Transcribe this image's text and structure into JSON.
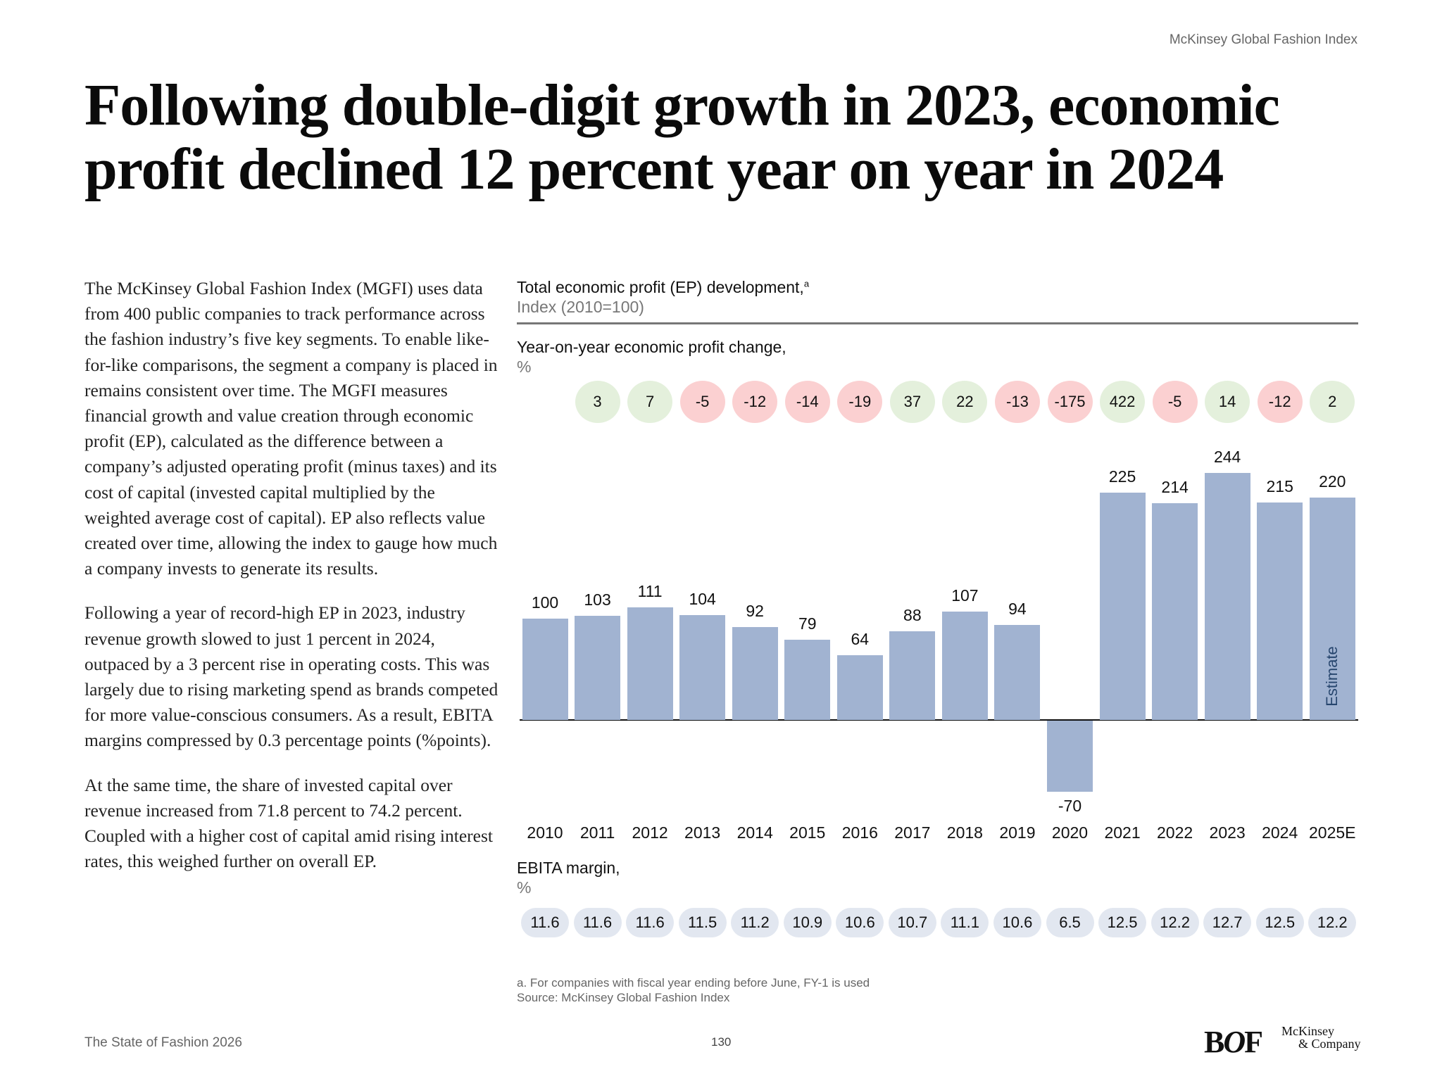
{
  "header": {
    "source_label": "McKinsey Global Fashion Index"
  },
  "title": "Following double-digit growth in 2023, economic profit declined 12 percent year on year in 2024",
  "body": [
    "The McKinsey Global Fashion Index (MGFI) uses data from 400 public companies to track performance across the fashion industry’s five key segments. To enable like-for-like comparisons, the segment a company is placed in remains consistent over time. The MGFI measures financial growth and value creation through economic profit (EP), calculated as the difference between a company’s adjusted operating profit (minus taxes) and its cost of capital (invested capital multiplied by the weighted average cost of capital). EP also reflects value created over time, allowing the index to gauge how much a company invests to generate its results.",
    "Following a year of record-high EP in 2023, industry revenue growth slowed to just 1 percent in 2024, outpaced by a 3 percent rise in operating costs. This was largely due to rising marketing spend as brands competed for more value-conscious consumers. As a result, EBITA margins compressed by 0.3 percentage points (%points).",
    "At the same time, the share of invested capital over revenue increased from 71.8 percent to 74.2 percent. Coupled with a higher cost of capital amid rising interest rates, this weighed further on overall EP."
  ],
  "chart_data": {
    "type": "bar",
    "title": "Total economic profit (EP) development,",
    "title_footnote_mark": "a",
    "ylabel": "Index (2010=100)",
    "categories": [
      "2010",
      "2011",
      "2012",
      "2013",
      "2014",
      "2015",
      "2016",
      "2017",
      "2018",
      "2019",
      "2020",
      "2021",
      "2022",
      "2023",
      "2024",
      "2025E"
    ],
    "values": [
      100,
      103,
      111,
      104,
      92,
      79,
      64,
      88,
      107,
      94,
      -70,
      225,
      214,
      244,
      215,
      220
    ],
    "ylim": [
      -70,
      244
    ],
    "grid": false,
    "estimate_label": "Estimate",
    "bar_color": "#a1b3d1",
    "yoy": {
      "label": "Year-on-year economic profit change,",
      "unit": "%",
      "values": [
        3,
        7,
        -5,
        -12,
        -14,
        -19,
        37,
        22,
        -13,
        -175,
        422,
        -5,
        14,
        -12,
        2
      ],
      "positive_color": "#e4f0dc",
      "negative_color": "#fbd0d1"
    },
    "ebita": {
      "label": "EBITA margin,",
      "unit": "%",
      "values": [
        11.6,
        11.6,
        11.6,
        11.5,
        11.2,
        10.9,
        10.6,
        10.7,
        11.1,
        10.6,
        6.5,
        12.5,
        12.2,
        12.7,
        12.5,
        12.2
      ]
    }
  },
  "footnote": "a. For companies with fiscal year ending before June, FY-1 is used",
  "source": "Source: McKinsey Global Fashion Index",
  "footer": {
    "publication": "The State of Fashion 2026",
    "page": "130"
  },
  "logos": {
    "bof": "BOF",
    "mckinsey_line1": "McKinsey",
    "mckinsey_line2": "& Company"
  }
}
